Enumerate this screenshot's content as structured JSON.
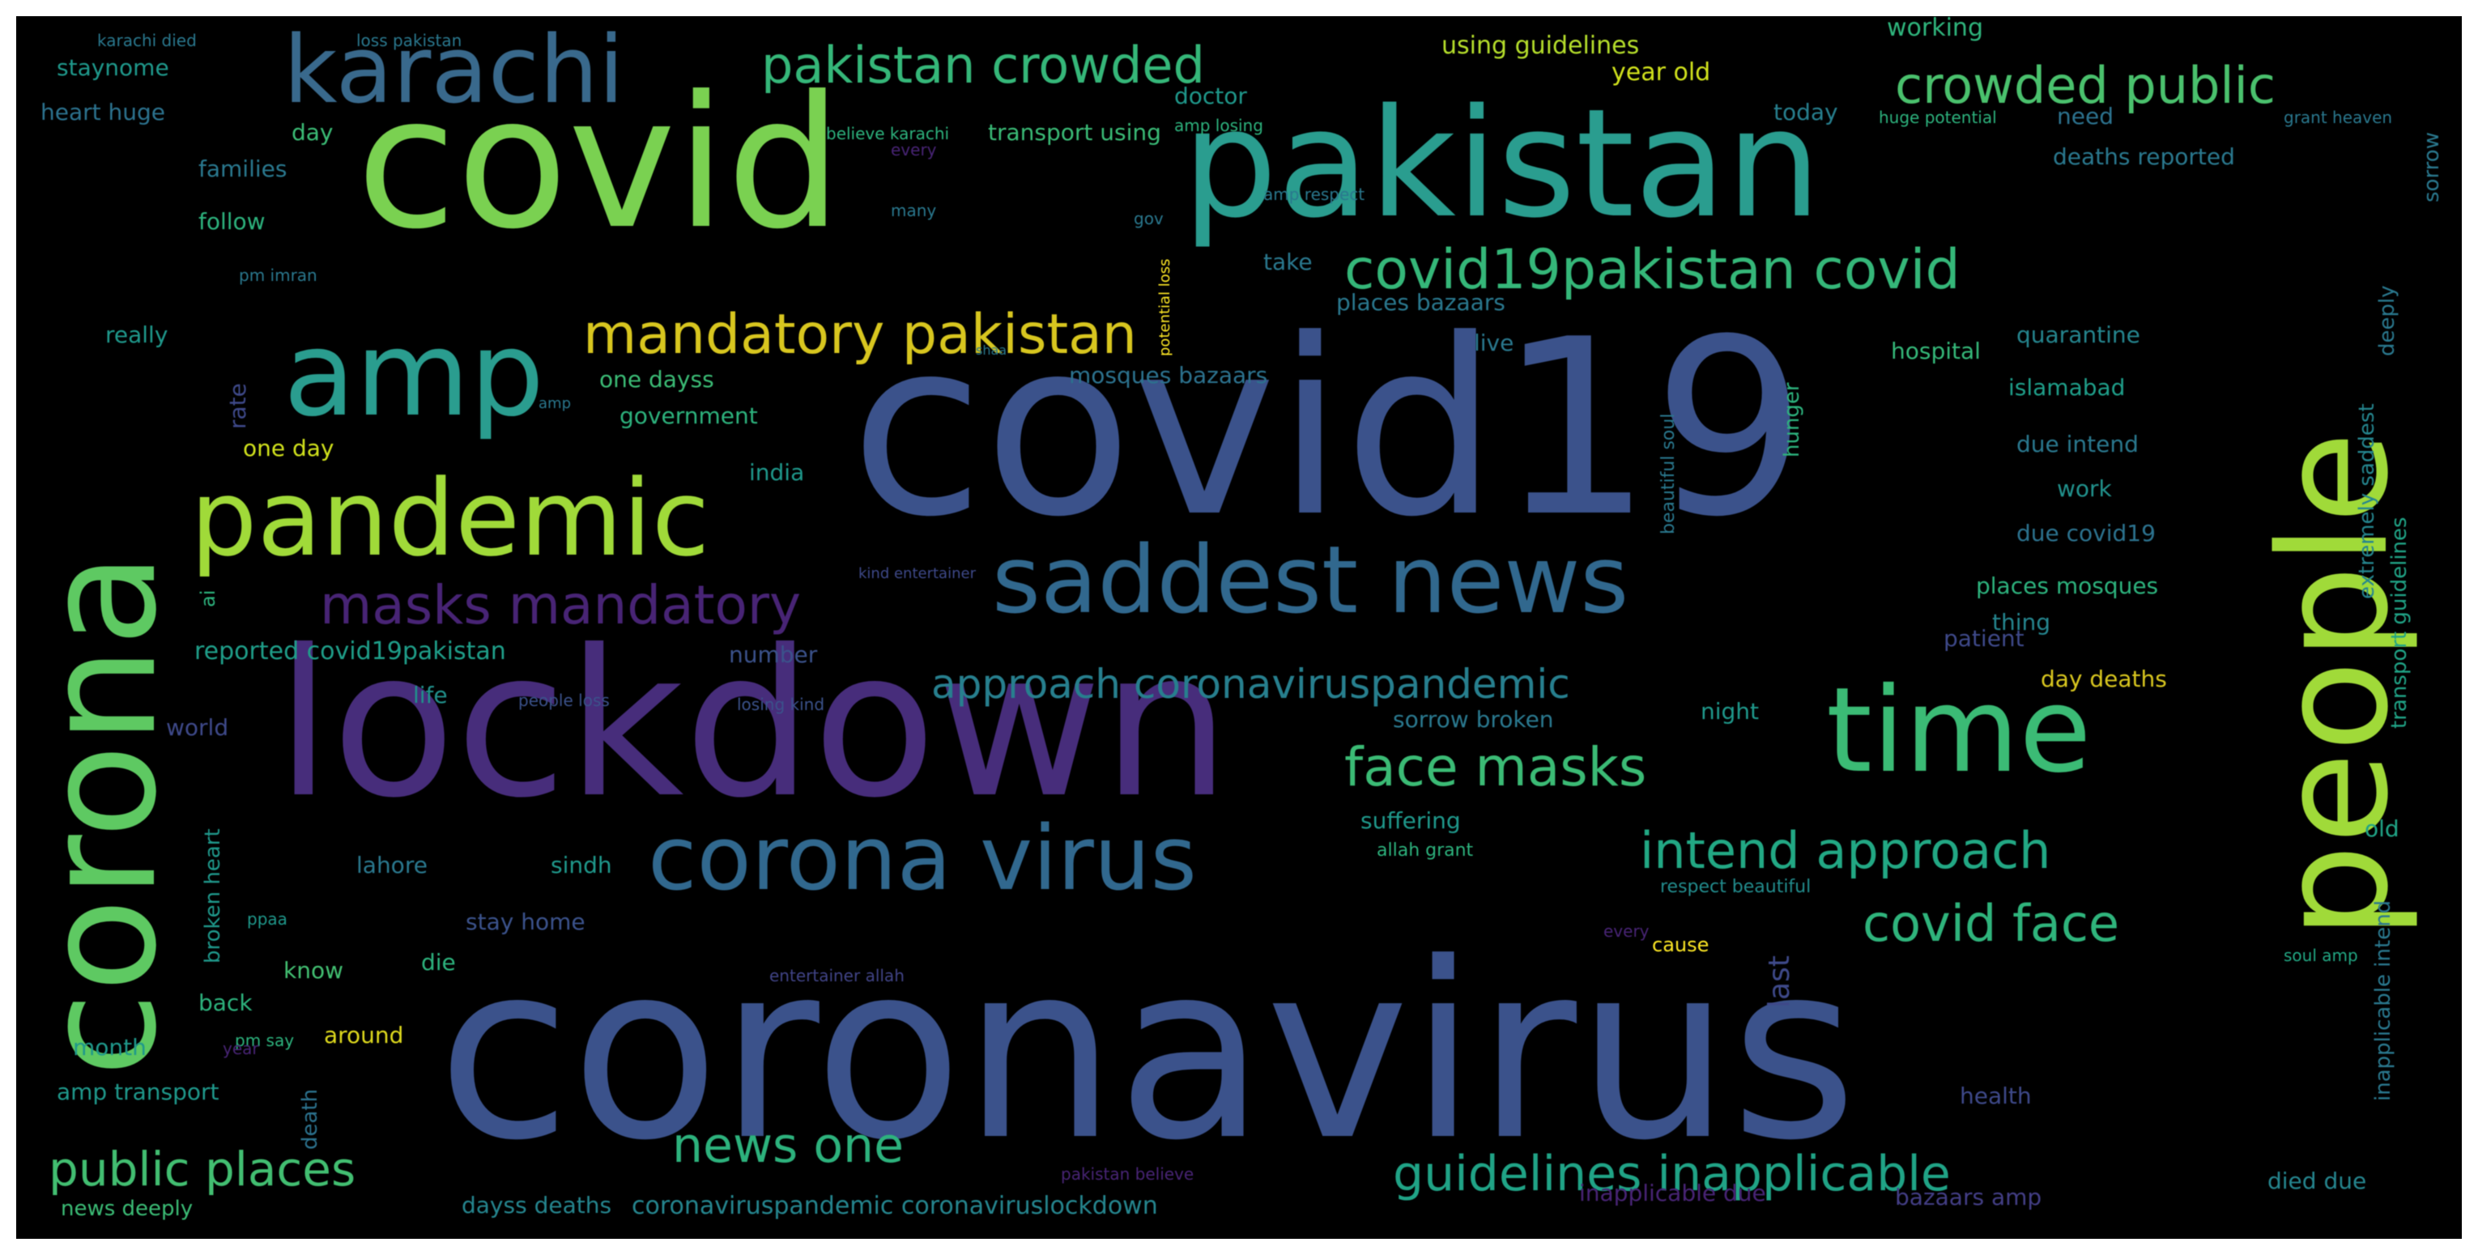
{
  "wordcloud": {
    "background": "#000000",
    "words": [
      {
        "text": "coronavirus",
        "color": "#3b528b"
      },
      {
        "text": "covid19",
        "color": "#3b528b"
      },
      {
        "text": "lockdown",
        "color": "#472d7b"
      },
      {
        "text": "covid",
        "color": "#7ad151"
      },
      {
        "text": "pakistan",
        "color": "#2a9d8f"
      },
      {
        "text": "people",
        "color": "#a0da39"
      },
      {
        "text": "corona",
        "color": "#5ec962"
      },
      {
        "text": "time",
        "color": "#3bbb75"
      },
      {
        "text": "amp",
        "color": "#2a9d8f"
      },
      {
        "text": "pandemic",
        "color": "#a0da39"
      },
      {
        "text": "karachi",
        "color": "#39698c"
      },
      {
        "text": "saddest news",
        "color": "#31688e"
      },
      {
        "text": "corona virus",
        "color": "#31688e"
      },
      {
        "text": "mandatory pakistan",
        "color": "#d8c61f"
      },
      {
        "text": "covid19pakistan covid",
        "color": "#35b779"
      },
      {
        "text": "masks mandatory",
        "color": "#482475"
      },
      {
        "text": "face masks",
        "color": "#3bbb75"
      },
      {
        "text": "intend approach",
        "color": "#22a884"
      },
      {
        "text": "covid face",
        "color": "#2fb47c"
      },
      {
        "text": "approach coronaviruspandemic",
        "color": "#277f8e"
      },
      {
        "text": "pakistan crowded",
        "color": "#35b779"
      },
      {
        "text": "crowded public",
        "color": "#4ac16d"
      },
      {
        "text": "guidelines inapplicable",
        "color": "#20a386"
      },
      {
        "text": "public places",
        "color": "#42be71"
      },
      {
        "text": "news one",
        "color": "#2db27d"
      },
      {
        "text": "coronaviruspandemic coronaviruslockdown",
        "color": "#25858e"
      },
      {
        "text": "reported covid19pakistan",
        "color": "#1f9e89"
      },
      {
        "text": "using guidelines",
        "color": "#b5de2b"
      },
      {
        "text": "year old",
        "color": "#d0e11c"
      },
      {
        "text": "working",
        "color": "#2fb47c"
      },
      {
        "text": "today",
        "color": "#277f8e"
      },
      {
        "text": "doctor",
        "color": "#1f988b"
      },
      {
        "text": "transport using",
        "color": "#3aba76"
      },
      {
        "text": "deaths reported",
        "color": "#2a788e"
      },
      {
        "text": "quarantine",
        "color": "#25858e"
      },
      {
        "text": "hospital",
        "color": "#35b779"
      },
      {
        "text": "islamabad",
        "color": "#1f9e89"
      },
      {
        "text": "due intend",
        "color": "#2a788e"
      },
      {
        "text": "work",
        "color": "#21918c"
      },
      {
        "text": "due covid19",
        "color": "#2c728e"
      },
      {
        "text": "places mosques",
        "color": "#2db27d"
      },
      {
        "text": "thing",
        "color": "#25858e"
      },
      {
        "text": "patient",
        "color": "#3e4989"
      },
      {
        "text": "day deaths",
        "color": "#d8c61f"
      },
      {
        "text": "sorrow broken",
        "color": "#2a788e"
      },
      {
        "text": "suffering",
        "color": "#1f988b"
      },
      {
        "text": "night",
        "color": "#1f988b"
      },
      {
        "text": "allah grant",
        "color": "#2db27d"
      },
      {
        "text": "respect beautiful",
        "color": "#228c8d"
      },
      {
        "text": "cause",
        "color": "#fde725"
      },
      {
        "text": "last",
        "color": "#3e4989"
      },
      {
        "text": "health",
        "color": "#3e4989"
      },
      {
        "text": "inapplicable due",
        "color": "#482475"
      },
      {
        "text": "bazaars amp",
        "color": "#433e85"
      },
      {
        "text": "died due",
        "color": "#25858e"
      },
      {
        "text": "old",
        "color": "#20a386"
      },
      {
        "text": "soul amp",
        "color": "#22a884"
      },
      {
        "text": "staynome",
        "color": "#1f988b"
      },
      {
        "text": "heart huge",
        "color": "#2c728e"
      },
      {
        "text": "day",
        "color": "#3bbb75"
      },
      {
        "text": "families",
        "color": "#2a788e"
      },
      {
        "text": "follow",
        "color": "#2db27d"
      },
      {
        "text": "take",
        "color": "#2a788e"
      },
      {
        "text": "places bazaars",
        "color": "#2a788e"
      },
      {
        "text": "live",
        "color": "#2a788e"
      },
      {
        "text": "really",
        "color": "#1f988b"
      },
      {
        "text": "one dayss",
        "color": "#3bbb75"
      },
      {
        "text": "government",
        "color": "#2db27d"
      },
      {
        "text": "one day",
        "color": "#d0e11c"
      },
      {
        "text": "india",
        "color": "#1f988b"
      },
      {
        "text": "number",
        "color": "#3b528b"
      },
      {
        "text": "life",
        "color": "#21918c"
      },
      {
        "text": "world",
        "color": "#3e4989"
      },
      {
        "text": "lahore",
        "color": "#2a788e"
      },
      {
        "text": "sindh",
        "color": "#1f988b"
      },
      {
        "text": "stay home",
        "color": "#3b528b"
      },
      {
        "text": "die",
        "color": "#2db27d"
      },
      {
        "text": "know",
        "color": "#42be71"
      },
      {
        "text": "back",
        "color": "#2db27d"
      },
      {
        "text": "month",
        "color": "#1f988b"
      },
      {
        "text": "around",
        "color": "#ddd81d"
      },
      {
        "text": "amp transport",
        "color": "#1f988b"
      },
      {
        "text": "news deeply",
        "color": "#3bbb75"
      },
      {
        "text": "dayss deaths",
        "color": "#25858e"
      },
      {
        "text": "need",
        "color": "#2c728e"
      },
      {
        "text": "grant heaven",
        "color": "#2a788e"
      },
      {
        "text": "amp losing",
        "color": "#2db27d"
      },
      {
        "text": "amp respect",
        "color": "#2a788e"
      },
      {
        "text": "huge potential",
        "color": "#2db27d"
      },
      {
        "text": "believe karachi",
        "color": "#2db27d"
      },
      {
        "text": "karachi died",
        "color": "#2a788e"
      },
      {
        "text": "loss pakistan",
        "color": "#2a788e"
      },
      {
        "text": "mosques bazaars",
        "color": "#2c728e"
      },
      {
        "text": "people loss",
        "color": "#3b528b"
      },
      {
        "text": "losing kind",
        "color": "#3b528b"
      },
      {
        "text": "kind entertainer",
        "color": "#3e4989"
      },
      {
        "text": "entertainer allah",
        "color": "#414487"
      },
      {
        "text": "pakistan believe",
        "color": "#482475"
      },
      {
        "text": "every",
        "color": "#482475"
      },
      {
        "text": "extremely saddest",
        "color": "#25858e"
      },
      {
        "text": "transport guidelines",
        "color": "#20a386"
      },
      {
        "text": "deeply",
        "color": "#2a788e"
      },
      {
        "text": "sorrow",
        "color": "#2a788e"
      },
      {
        "text": "inapplicable intend",
        "color": "#2a788e"
      },
      {
        "text": "broken heart",
        "color": "#1f988b"
      },
      {
        "text": "hunger",
        "color": "#2db27d"
      },
      {
        "text": "beautiful soul",
        "color": "#2a788e"
      },
      {
        "text": "potential loss",
        "color": "#fde725"
      },
      {
        "text": "rate",
        "color": "#3e4989"
      },
      {
        "text": "ai",
        "color": "#2db27d"
      },
      {
        "text": "death",
        "color": "#2c728e"
      },
      {
        "text": "gov",
        "color": "#2a788e"
      },
      {
        "text": "pm imran",
        "color": "#2a788e"
      },
      {
        "text": "every",
        "color": "#482475"
      },
      {
        "text": "many",
        "color": "#2a788e"
      },
      {
        "text": "pm say",
        "color": "#2db27d"
      },
      {
        "text": "ppaa",
        "color": "#1f988b"
      },
      {
        "text": "shaa",
        "color": "#2a788e"
      },
      {
        "text": "amp",
        "color": "#2a788e"
      },
      {
        "text": "year",
        "color": "#482475"
      }
    ]
  }
}
